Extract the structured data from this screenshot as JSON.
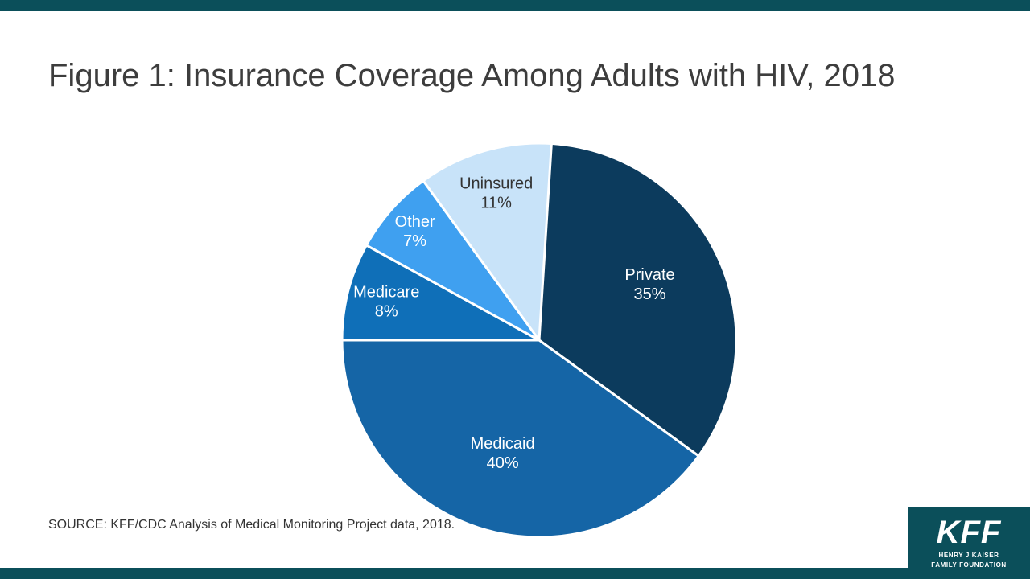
{
  "slide": {
    "title": "Figure 1: Insurance Coverage Among Adults with HIV, 2018",
    "source": "SOURCE: KFF/CDC Analysis of Medical Monitoring Project data, 2018.",
    "accent_color": "#0b4f5a"
  },
  "logo": {
    "name": "KFF",
    "subtitle_line1": "HENRY J KAISER",
    "subtitle_line2": "FAMILY FOUNDATION"
  },
  "chart_data": {
    "type": "pie",
    "title": "Insurance Coverage Among Adults with HIV, 2018",
    "start_angle": 0,
    "direction": "clockwise",
    "legend_position": "none",
    "labels_inside": true,
    "slices": [
      {
        "label": "Private",
        "value": 35,
        "color": "#0c3b5d",
        "label_color": "#ffffff",
        "label_radius": 0.63
      },
      {
        "label": "Medicaid",
        "value": 40,
        "color": "#1565a6",
        "label_color": "#ffffff",
        "label_radius": 0.6
      },
      {
        "label": "Medicare",
        "value": 8,
        "color": "#0f6fb8",
        "label_color": "#ffffff",
        "label_radius": 0.8
      },
      {
        "label": "Other",
        "value": 7,
        "color": "#3fa0f0",
        "label_color": "#ffffff",
        "label_radius": 0.84
      },
      {
        "label": "Uninsured",
        "value": 11,
        "color": "#c8e3f9",
        "label_color": "#333333",
        "label_radius": 0.78
      }
    ]
  }
}
